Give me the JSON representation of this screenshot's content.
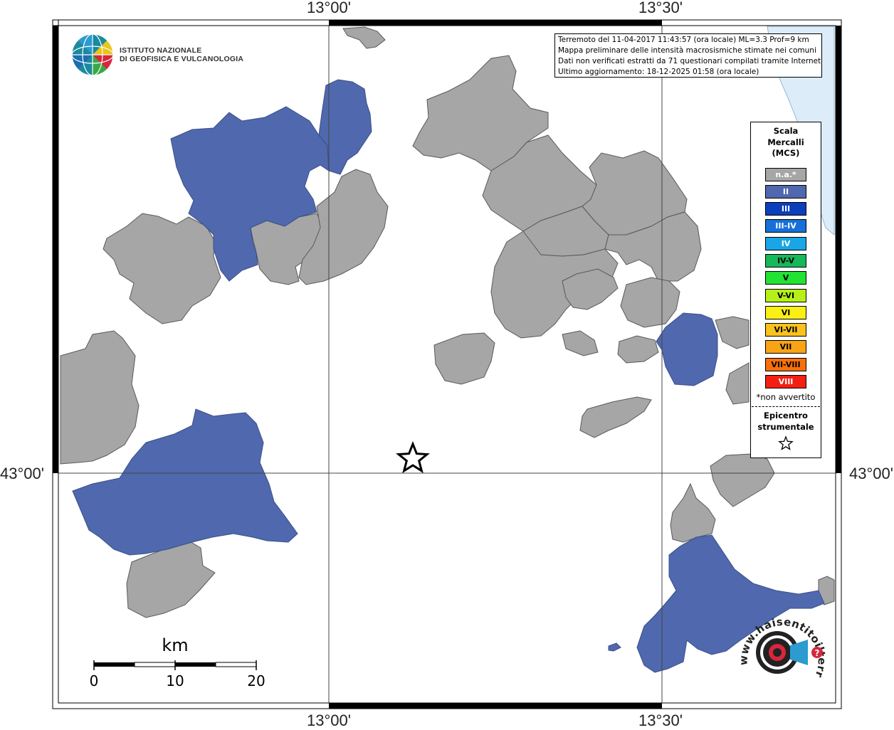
{
  "coords": {
    "top": [
      "13°00'",
      "13°30'"
    ],
    "bottom": [
      "13°00'",
      "13°30'"
    ],
    "left": "43°00'",
    "right": "43°00'"
  },
  "info": {
    "line1": "Terremoto del 11-04-2017 11:43:57 (ora locale) ML=3.3 Prof=9 km",
    "line2": "Mappa preliminare delle intensità macrosismiche stimate nei comuni",
    "line3": "Dati non verificati estratti da 71 questionari compilati tramite Internet.",
    "line4": "Ultimo aggiornamento: 18-12-2025 01:58 (ora locale)"
  },
  "legend": {
    "title1": "Scala",
    "title2": "Mercalli",
    "title3": "(MCS)",
    "items": [
      {
        "label": "n.a.*",
        "color": "#a6a6a6",
        "text_color": "#ffffff"
      },
      {
        "label": "II",
        "color": "#5068ad",
        "text_color": "#ffffff"
      },
      {
        "label": "III",
        "color": "#0b3fbd",
        "text_color": "#ffffff"
      },
      {
        "label": "III-IV",
        "color": "#1670d8",
        "text_color": "#ffffff"
      },
      {
        "label": "IV",
        "color": "#1aa6e6",
        "text_color": "#ffffff"
      },
      {
        "label": "IV-V",
        "color": "#16b85a",
        "text_color": "#000000"
      },
      {
        "label": "V",
        "color": "#22e234",
        "text_color": "#000000"
      },
      {
        "label": "V-VI",
        "color": "#b6f018",
        "text_color": "#000000"
      },
      {
        "label": "VI",
        "color": "#faf014",
        "text_color": "#000000"
      },
      {
        "label": "VI-VII",
        "color": "#fac21c",
        "text_color": "#000000"
      },
      {
        "label": "VII",
        "color": "#f8a414",
        "text_color": "#000000"
      },
      {
        "label": "VII-VIII",
        "color": "#f8700c",
        "text_color": "#000000"
      },
      {
        "label": "VIII",
        "color": "#f41e12",
        "text_color": "#ffffff"
      }
    ],
    "note": "*non avvertito",
    "epicenter1": "Epicentro",
    "epicenter2": "strumentale"
  },
  "logo": {
    "line1": "ISTITUTO NAZIONALE",
    "line2": "DI GEOFISICA E VULCANOLOGIA"
  },
  "scale": {
    "unit": "km",
    "ticks": [
      "0",
      "10",
      "20"
    ]
  },
  "hs_logo": {
    "text": "www.haisentitoilterremoto.it",
    "mark": "?"
  },
  "colors": {
    "na": "#a6a6a6",
    "ii": "#5068ad",
    "sea": "#dcecf8",
    "border": "#595959"
  }
}
